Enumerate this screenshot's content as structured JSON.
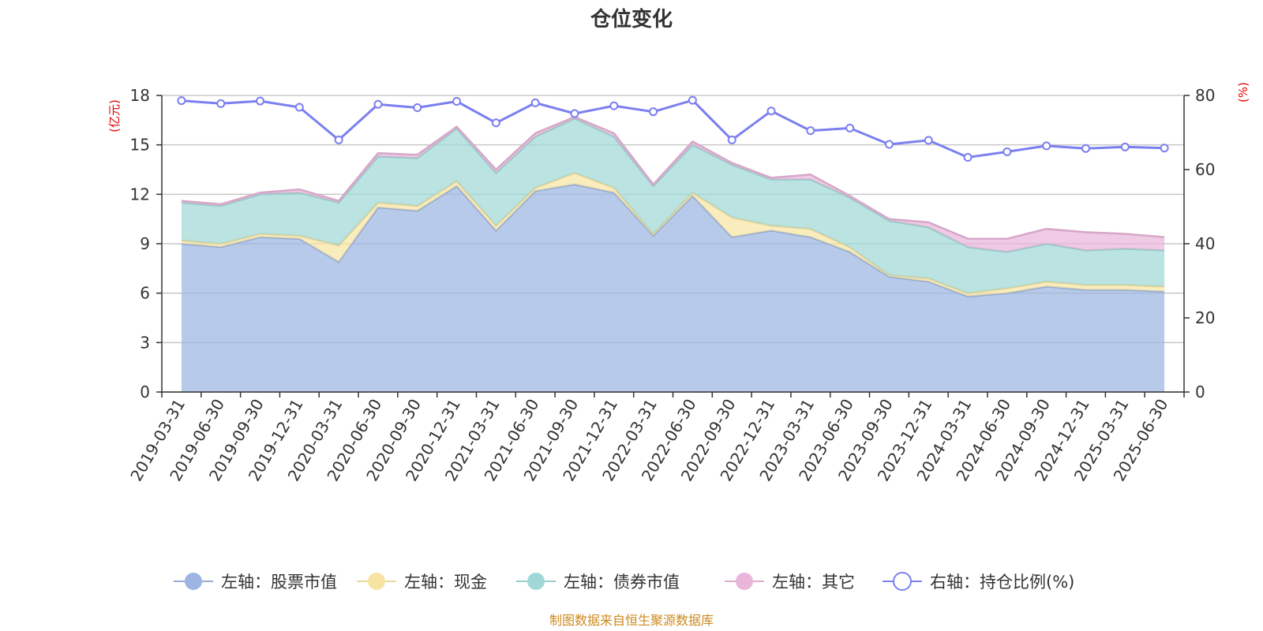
{
  "chart_data": {
    "type": "area",
    "title": "仓位变化",
    "left_axis": {
      "unit": "(亿元)",
      "ylim": [
        0,
        18
      ],
      "ticks": [
        0,
        3,
        6,
        9,
        12,
        15,
        18
      ]
    },
    "right_axis": {
      "unit": "(%)",
      "ylim": [
        0,
        80
      ],
      "ticks": [
        0,
        20,
        40,
        60,
        80
      ]
    },
    "grid": true,
    "legend_position": "bottom",
    "categories": [
      "2019-03-31",
      "2019-06-30",
      "2019-09-30",
      "2019-12-31",
      "2020-03-31",
      "2020-06-30",
      "2020-09-30",
      "2020-12-31",
      "2021-03-31",
      "2021-06-30",
      "2021-09-30",
      "2021-12-31",
      "2022-03-31",
      "2022-06-30",
      "2022-09-30",
      "2022-12-31",
      "2023-03-31",
      "2023-06-30",
      "2023-09-30",
      "2023-12-31",
      "2024-03-31",
      "2024-06-30",
      "2024-09-30",
      "2024-12-31",
      "2025-03-31",
      "2025-06-30"
    ],
    "stacked_series": [
      {
        "name": "左轴：股票市值",
        "axis": "left",
        "color": "#9db5e2",
        "values": [
          9.0,
          8.8,
          9.4,
          9.3,
          7.9,
          11.2,
          11.0,
          12.5,
          9.8,
          12.2,
          12.6,
          12.1,
          9.5,
          11.9,
          9.4,
          9.8,
          9.4,
          8.5,
          7.0,
          6.7,
          5.8,
          6.0,
          6.4,
          6.2,
          6.2,
          6.1
        ]
      },
      {
        "name": "左轴：现金",
        "axis": "left",
        "color": "#f7e4a3",
        "values": [
          0.2,
          0.2,
          0.2,
          0.2,
          1.0,
          0.3,
          0.3,
          0.3,
          0.3,
          0.2,
          0.7,
          0.3,
          0.1,
          0.2,
          1.2,
          0.3,
          0.5,
          0.3,
          0.1,
          0.2,
          0.2,
          0.3,
          0.3,
          0.3,
          0.3,
          0.3
        ]
      },
      {
        "name": "左轴：债券市值",
        "axis": "left",
        "color": "#9fd8d6",
        "values": [
          2.3,
          2.3,
          2.4,
          2.6,
          2.6,
          2.8,
          2.9,
          3.2,
          3.2,
          3.1,
          3.3,
          3.1,
          2.9,
          2.9,
          3.2,
          2.8,
          3.0,
          3.0,
          3.3,
          3.1,
          2.8,
          2.2,
          2.3,
          2.1,
          2.2,
          2.2
        ]
      },
      {
        "name": "左轴：其它",
        "axis": "left",
        "color": "#e9b5d9",
        "values": [
          0.1,
          0.1,
          0.1,
          0.2,
          0.1,
          0.2,
          0.2,
          0.1,
          0.2,
          0.2,
          0.1,
          0.2,
          0.1,
          0.2,
          0.1,
          0.1,
          0.3,
          0.1,
          0.1,
          0.3,
          0.5,
          0.8,
          0.9,
          1.1,
          0.9,
          0.8
        ]
      }
    ],
    "line_series": {
      "name": "右轴：持仓比例(%)",
      "axis": "right",
      "color": "#7b7ff0",
      "values": [
        78.6,
        77.8,
        78.5,
        76.8,
        68.0,
        77.6,
        76.7,
        78.4,
        72.6,
        78.0,
        75.1,
        77.2,
        75.6,
        78.7,
        68.0,
        75.8,
        70.5,
        71.2,
        66.8,
        67.9,
        63.3,
        64.8,
        66.4,
        65.7,
        66.1,
        65.8
      ]
    }
  },
  "footer": {
    "source": "制图数据来自恒生聚源数据库"
  }
}
